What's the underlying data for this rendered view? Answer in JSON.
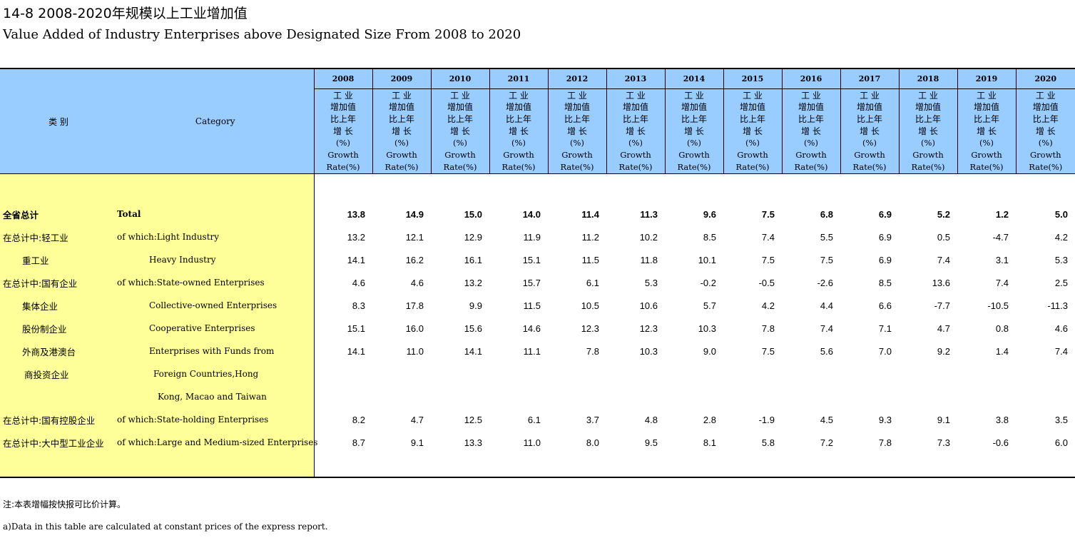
{
  "title_cn": "14-8   2008-2020年规模以上工业增加值",
  "title_en": "Value Added of Industry Enterprises above Designated Size From 2008 to 2020",
  "header": {
    "col1": "类  别",
    "col2": "Category",
    "sub_line1": "工 业",
    "sub_line2": "增加值",
    "sub_line3": "比上年",
    "sub_line4": "增  长",
    "sub_line5": "(%)",
    "sub_line6": "Growth",
    "sub_line7": "Rate(%)"
  },
  "years": [
    "2008",
    "2009",
    "2010",
    "2011",
    "2012",
    "2013",
    "2014",
    "2015",
    "2016",
    "2017",
    "2018",
    "2019",
    "2020"
  ],
  "rows": [
    {
      "cn": "全省总计",
      "en": "Total",
      "cn_indent": 0,
      "en_indent": 0,
      "bold": true,
      "values": [
        "13.8",
        "14.9",
        "15.0",
        "14.0",
        "11.4",
        "11.3",
        "9.6",
        "7.5",
        "6.8",
        "6.9",
        "5.2",
        "1.2",
        "5.0"
      ]
    },
    {
      "cn": "在总计中:轻工业",
      "en": "of which:Light Industry",
      "cn_indent": 0,
      "en_indent": 0,
      "values": [
        "13.2",
        "12.1",
        "12.9",
        "11.9",
        "11.2",
        "10.2",
        "8.5",
        "7.4",
        "5.5",
        "6.9",
        "0.5",
        "-4.7",
        "4.2"
      ]
    },
    {
      "cn": "重工业",
      "en": "Heavy Industry",
      "cn_indent": 27,
      "en_indent": 45,
      "values": [
        "14.1",
        "16.2",
        "16.1",
        "15.1",
        "11.5",
        "11.8",
        "10.1",
        "7.5",
        "7.5",
        "6.9",
        "7.4",
        "3.1",
        "5.3"
      ]
    },
    {
      "cn": "在总计中:国有企业",
      "en": "of which:State-owned Enterprises",
      "cn_indent": 0,
      "en_indent": 0,
      "values": [
        "4.6",
        "4.6",
        "13.2",
        "15.7",
        "6.1",
        "5.3",
        "-0.2",
        "-0.5",
        "-2.6",
        "8.5",
        "13.6",
        "7.4",
        "2.5"
      ]
    },
    {
      "cn": "集体企业",
      "en": "Collective-owned Enterprises",
      "cn_indent": 27,
      "en_indent": 45,
      "values": [
        "8.3",
        "17.8",
        "9.9",
        "11.5",
        "10.5",
        "10.6",
        "5.7",
        "4.2",
        "4.4",
        "6.6",
        "-7.7",
        "-10.5",
        "-11.3"
      ]
    },
    {
      "cn": "股份制企业",
      "en": "Cooperative Enterprises",
      "cn_indent": 27,
      "en_indent": 45,
      "values": [
        "15.1",
        "16.0",
        "15.6",
        "14.6",
        "12.3",
        "12.3",
        "10.3",
        "7.8",
        "7.4",
        "7.1",
        "4.7",
        "0.8",
        "4.6"
      ]
    },
    {
      "cn": "外商及港澳台",
      "en": "Enterprises with Funds from",
      "cn_indent": 27,
      "en_indent": 45,
      "values": [
        "14.1",
        "11.0",
        "14.1",
        "11.1",
        "7.8",
        "10.3",
        "9.0",
        "7.5",
        "5.6",
        "7.0",
        "9.2",
        "1.4",
        "7.4"
      ]
    },
    {
      "cn": "商投资企业",
      "en": "Foreign Countries,Hong",
      "cn_indent": 30,
      "en_indent": 51,
      "values": [
        "",
        "",
        "",
        "",
        "",
        "",
        "",
        "",
        "",
        "",
        "",
        "",
        ""
      ]
    },
    {
      "cn": "",
      "en": "Kong, Macao and Taiwan",
      "cn_indent": 0,
      "en_indent": 57,
      "values": [
        "",
        "",
        "",
        "",
        "",
        "",
        "",
        "",
        "",
        "",
        "",
        "",
        ""
      ]
    },
    {
      "cn": "在总计中:国有控股企业",
      "en": "of which:State-holding Enterprises",
      "cn_indent": 0,
      "en_indent": 0,
      "values": [
        "8.2",
        "4.7",
        "12.5",
        "6.1",
        "3.7",
        "4.8",
        "2.8",
        "-1.9",
        "4.5",
        "9.3",
        "9.1",
        "3.8",
        "3.5"
      ]
    },
    {
      "cn": "在总计中:大中型工业企业",
      "en": "of which:Large and Medium-sized Enterprises",
      "cn_indent": 0,
      "en_indent": 0,
      "values": [
        "8.7",
        "9.1",
        "13.3",
        "11.0",
        "8.0",
        "9.5",
        "8.1",
        "5.8",
        "7.2",
        "7.8",
        "7.3",
        "-0.6",
        "6.0"
      ]
    }
  ],
  "note_cn": "注:本表增幅按快报可比价计算。",
  "note_en": "a)Data in this table are calculated at constant prices of the express report."
}
